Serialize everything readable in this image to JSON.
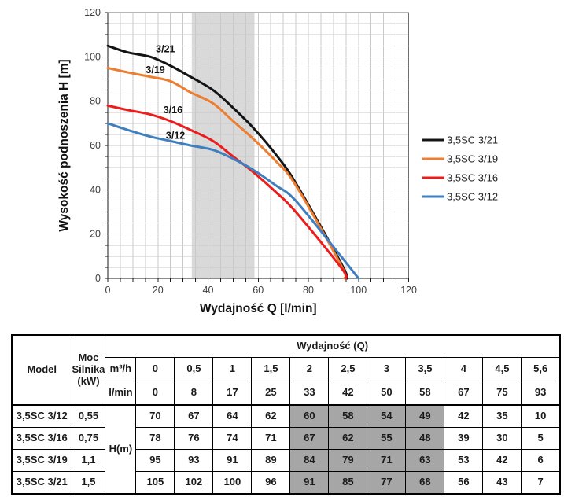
{
  "chart_data": {
    "type": "line",
    "title": "",
    "xlabel": "Wydajność Q [l/min]",
    "ylabel": "Wysokość podnoszenia H [m]",
    "xlim": [
      0,
      120
    ],
    "ylim": [
      0,
      120
    ],
    "x_ticks": [
      0,
      20,
      40,
      60,
      80,
      100,
      120
    ],
    "y_ticks": [
      0,
      20,
      40,
      60,
      80,
      100,
      120
    ],
    "grid_step": 5,
    "grid_on": true,
    "legend_position": "right",
    "highlight_band": {
      "x0": 33.5,
      "x1": 58.5,
      "color": "#d9d9d9"
    },
    "colors": {
      "grid": "#c9c9c9",
      "frame": "#6e6e6e",
      "axis": "#1a1a1a",
      "tick_label": "#3f3f3f"
    },
    "series": [
      {
        "name": "3,5SC 3/21",
        "color": "#141414",
        "label": "3/21",
        "label_pos": {
          "x": 23,
          "y": 103.5
        },
        "points": [
          [
            0,
            105
          ],
          [
            8,
            102
          ],
          [
            17,
            100
          ],
          [
            25,
            96
          ],
          [
            33,
            91
          ],
          [
            42,
            85
          ],
          [
            50,
            77
          ],
          [
            58,
            68
          ],
          [
            67,
            56
          ],
          [
            75,
            43
          ],
          [
            93,
            7
          ],
          [
            95.5,
            0
          ]
        ]
      },
      {
        "name": "3,5SC 3/19",
        "color": "#ed7d31",
        "label": "3/19",
        "label_pos": {
          "x": 19,
          "y": 94
        },
        "points": [
          [
            0,
            95
          ],
          [
            8,
            93
          ],
          [
            17,
            91
          ],
          [
            25,
            89
          ],
          [
            33,
            84
          ],
          [
            42,
            79
          ],
          [
            50,
            71
          ],
          [
            58,
            63
          ],
          [
            67,
            53
          ],
          [
            75,
            42
          ],
          [
            93,
            6
          ],
          [
            94.5,
            0
          ]
        ]
      },
      {
        "name": "3,5SC 3/16",
        "color": "#ec1c1c",
        "label": "3/16",
        "label_pos": {
          "x": 26,
          "y": 76
        },
        "points": [
          [
            0,
            78
          ],
          [
            8,
            76
          ],
          [
            17,
            74
          ],
          [
            25,
            71
          ],
          [
            33,
            67
          ],
          [
            42,
            62
          ],
          [
            50,
            55
          ],
          [
            58,
            48
          ],
          [
            67,
            39
          ],
          [
            75,
            30
          ],
          [
            93,
            5
          ],
          [
            95,
            0
          ]
        ]
      },
      {
        "name": "3,5SC 3/12",
        "color": "#3f7fbf",
        "label": "3/12",
        "label_pos": {
          "x": 27,
          "y": 64.5
        },
        "points": [
          [
            0,
            70
          ],
          [
            8,
            67
          ],
          [
            17,
            64
          ],
          [
            25,
            62
          ],
          [
            33,
            60
          ],
          [
            42,
            58
          ],
          [
            50,
            54
          ],
          [
            58,
            49
          ],
          [
            67,
            42
          ],
          [
            75,
            35
          ],
          [
            93,
            10
          ],
          [
            100,
            0
          ]
        ]
      }
    ]
  },
  "table": {
    "header": {
      "model": "Model",
      "power": "Moc Silnika (kW)",
      "q_group": "Wydajność (Q)",
      "unit_m3h": "m³/h",
      "unit_lmin": "l/min",
      "h_label": "H(m)",
      "q_m3h": [
        "0",
        "0,5",
        "1",
        "1,5",
        "2",
        "2,5",
        "3",
        "3,5",
        "4",
        "4,5",
        "5,6"
      ],
      "q_lmin": [
        "0",
        "8",
        "17",
        "25",
        "33",
        "42",
        "50",
        "58",
        "67",
        "75",
        "93"
      ]
    },
    "highlight_cols": [
      4,
      5,
      6,
      7
    ],
    "rows": [
      {
        "model": "3,5SC 3/12",
        "power": "0,55",
        "h": [
          "70",
          "67",
          "64",
          "62",
          "60",
          "58",
          "54",
          "49",
          "42",
          "35",
          "10"
        ]
      },
      {
        "model": "3,5SC 3/16",
        "power": "0,75",
        "h": [
          "78",
          "76",
          "74",
          "71",
          "67",
          "62",
          "55",
          "48",
          "39",
          "30",
          "5"
        ]
      },
      {
        "model": "3,5SC 3/19",
        "power": "1,1",
        "h": [
          "95",
          "93",
          "91",
          "89",
          "84",
          "79",
          "71",
          "63",
          "53",
          "42",
          "6"
        ]
      },
      {
        "model": "3,5SC 3/21",
        "power": "1,5",
        "h": [
          "105",
          "102",
          "100",
          "96",
          "91",
          "85",
          "77",
          "68",
          "56",
          "43",
          "7"
        ]
      }
    ]
  }
}
